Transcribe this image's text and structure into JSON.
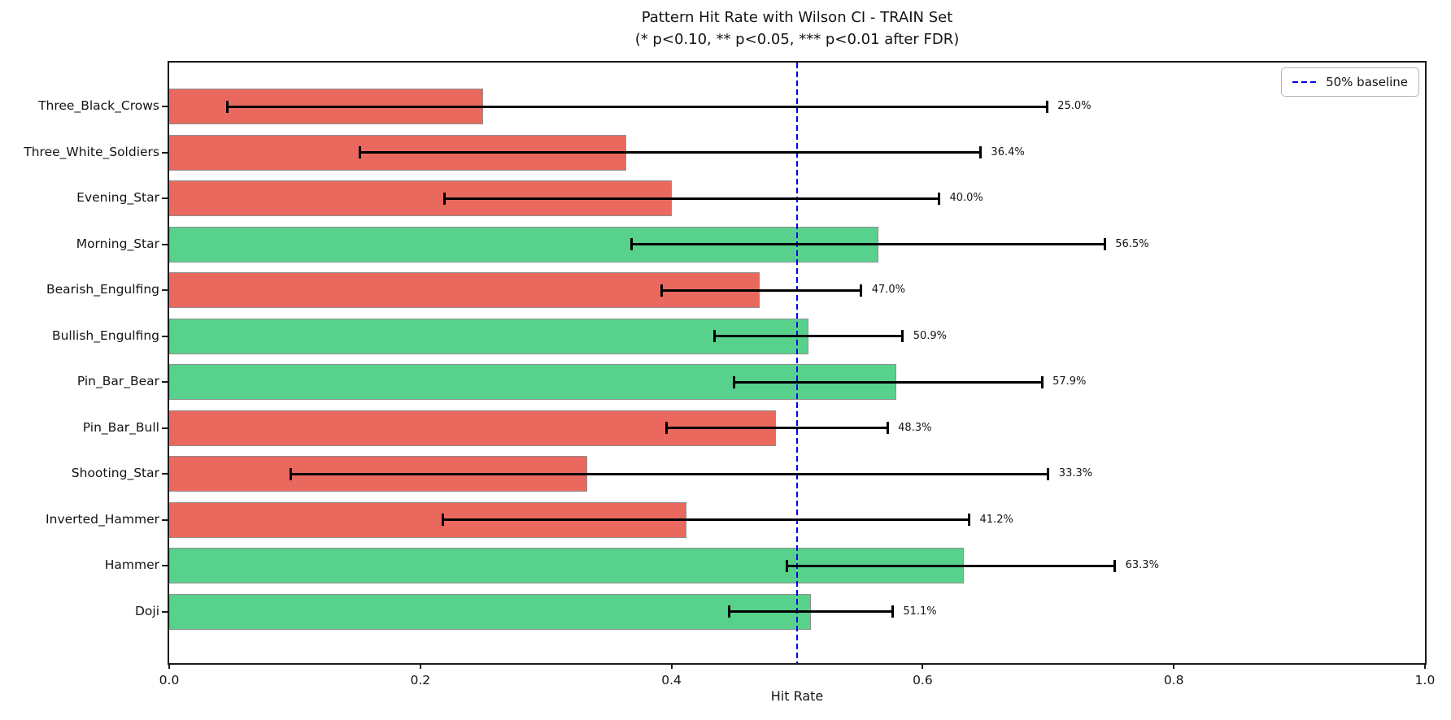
{
  "title": "Pattern Hit Rate with Wilson CI - TRAIN Set",
  "subtitle": "(* p<0.10, ** p<0.05, *** p<0.01 after FDR)",
  "xlabel": "Hit Rate",
  "legend": {
    "label": "50% baseline"
  },
  "colors": {
    "positive_bar": "#58d18c",
    "negative_bar": "#e9695e",
    "bar_edge": "#8f8f8f",
    "baseline_line": "#0000ee",
    "error_bar": "#000000",
    "axis": "#1a1a1a"
  },
  "chart_data": {
    "type": "bar",
    "orientation": "horizontal",
    "title": "Pattern Hit Rate with Wilson CI - TRAIN Set",
    "subtitle": "(* p<0.10, ** p<0.05, *** p<0.01 after FDR)",
    "xlabel": "Hit Rate",
    "ylabel": "",
    "xlim": [
      0.0,
      1.0
    ],
    "x_ticks": [
      0.0,
      0.2,
      0.4,
      0.6,
      0.8,
      1.0
    ],
    "x_tick_labels": [
      "0.0",
      "0.2",
      "0.4",
      "0.6",
      "0.8",
      "1.0"
    ],
    "grid": false,
    "legend_position": "upper right",
    "baseline": {
      "value": 0.5,
      "label": "50% baseline",
      "style": "dashed",
      "color": "#0000ee"
    },
    "categories": [
      "Three_Black_Crows",
      "Three_White_Soldiers",
      "Evening_Star",
      "Morning_Star",
      "Bearish_Engulfing",
      "Bullish_Engulfing",
      "Pin_Bar_Bear",
      "Pin_Bar_Bull",
      "Shooting_Star",
      "Inverted_Hammer",
      "Hammer",
      "Doji"
    ],
    "series": [
      {
        "name": "hit_rate",
        "values": [
          0.25,
          0.364,
          0.4,
          0.565,
          0.47,
          0.509,
          0.579,
          0.483,
          0.333,
          0.412,
          0.633,
          0.511
        ]
      }
    ],
    "value_labels": [
      "25.0%",
      "36.4%",
      "40.0%",
      "56.5%",
      "47.0%",
      "50.9%",
      "57.9%",
      "48.3%",
      "33.3%",
      "41.2%",
      "63.3%",
      "51.1%"
    ],
    "ci_low": [
      0.046,
      0.152,
      0.219,
      0.368,
      0.392,
      0.434,
      0.45,
      0.396,
      0.097,
      0.218,
      0.492,
      0.446
    ],
    "ci_high": [
      0.699,
      0.646,
      0.613,
      0.745,
      0.551,
      0.584,
      0.695,
      0.572,
      0.7,
      0.637,
      0.753,
      0.576
    ],
    "bar_colors": [
      "#e9695e",
      "#e9695e",
      "#e9695e",
      "#58d18c",
      "#e9695e",
      "#58d18c",
      "#58d18c",
      "#e9695e",
      "#e9695e",
      "#e9695e",
      "#58d18c",
      "#58d18c"
    ]
  }
}
